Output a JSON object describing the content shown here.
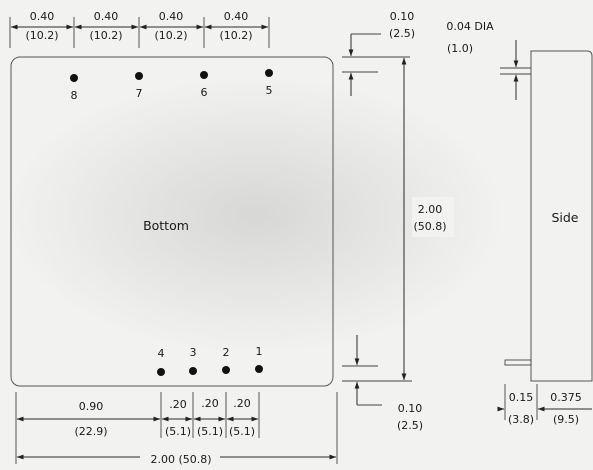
{
  "pitch_top": [
    {
      "in": "0.40",
      "mm": "(10.2)"
    },
    {
      "in": "0.40",
      "mm": "(10.2)"
    },
    {
      "in": "0.40",
      "mm": "(10.2)"
    },
    {
      "in": "0.40",
      "mm": "(10.2)"
    }
  ],
  "pins_top": [
    "8",
    "7",
    "6",
    "5"
  ],
  "pins_bottom": [
    "4",
    "3",
    "2",
    "1"
  ],
  "bottom_view_label": "Bottom",
  "side_view_label": "Side",
  "offset_top": {
    "in": "0.10",
    "mm": "(2.5)"
  },
  "offset_bottom": {
    "in": "0.10",
    "mm": "(2.5)"
  },
  "height": {
    "in": "2.00",
    "mm": "(50.8)"
  },
  "pin_dia": {
    "in": "0.04 DIA",
    "mm": "(1.0)"
  },
  "pin_from_edge": {
    "in": "0.90",
    "mm": "(22.9)"
  },
  "pitch_bottom": [
    {
      "in": ".20",
      "mm": "(5.1)"
    },
    {
      "in": ".20",
      "mm": "(5.1)"
    },
    {
      "in": ".20",
      "mm": "(5.1)"
    }
  ],
  "width_total": "2.00  (50.8)",
  "side_pin_length": {
    "in": "0.15",
    "mm": "(3.8)"
  },
  "side_body_depth": {
    "in": "0.375",
    "mm": "(9.5)"
  }
}
